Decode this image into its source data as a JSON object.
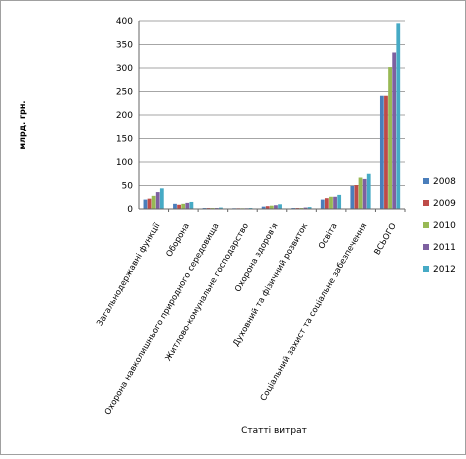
{
  "chart_data": {
    "type": "bar",
    "title": "",
    "xlabel": "Статті витрат",
    "ylabel": "млрд. грн.",
    "ylim": [
      0,
      400
    ],
    "yticks": [
      0,
      50,
      100,
      150,
      200,
      250,
      300,
      350,
      400
    ],
    "grid": true,
    "legend_position": "right",
    "categories": [
      "Загальнодержавні функції",
      "Оборона",
      "Охорона навколишнього природного середовища",
      "Житлово-комунальне господарство",
      "Охорона здоров'я",
      "Духовний та фізичний розвиток",
      "Освіта",
      "Соціальний захист та соціальне забезпечення",
      "ВСЬОГО"
    ],
    "series": [
      {
        "name": "2008",
        "color": "#4a7ebb",
        "values": [
          20,
          11,
          2,
          1.5,
          5,
          2,
          20,
          49,
          241
        ]
      },
      {
        "name": "2009",
        "color": "#be4b48",
        "values": [
          22,
          9,
          2,
          1.5,
          6,
          2,
          23,
          51,
          241
        ]
      },
      {
        "name": "2010",
        "color": "#98b954",
        "values": [
          28,
          11,
          2,
          1.5,
          7,
          2,
          26,
          67,
          302
        ]
      },
      {
        "name": "2011",
        "color": "#7d60a0",
        "values": [
          36,
          13,
          2,
          1.5,
          8,
          3,
          26,
          64,
          333
        ]
      },
      {
        "name": "2012",
        "color": "#46aac5",
        "values": [
          44,
          15,
          3,
          2,
          10,
          4,
          30,
          75,
          395
        ]
      }
    ]
  }
}
